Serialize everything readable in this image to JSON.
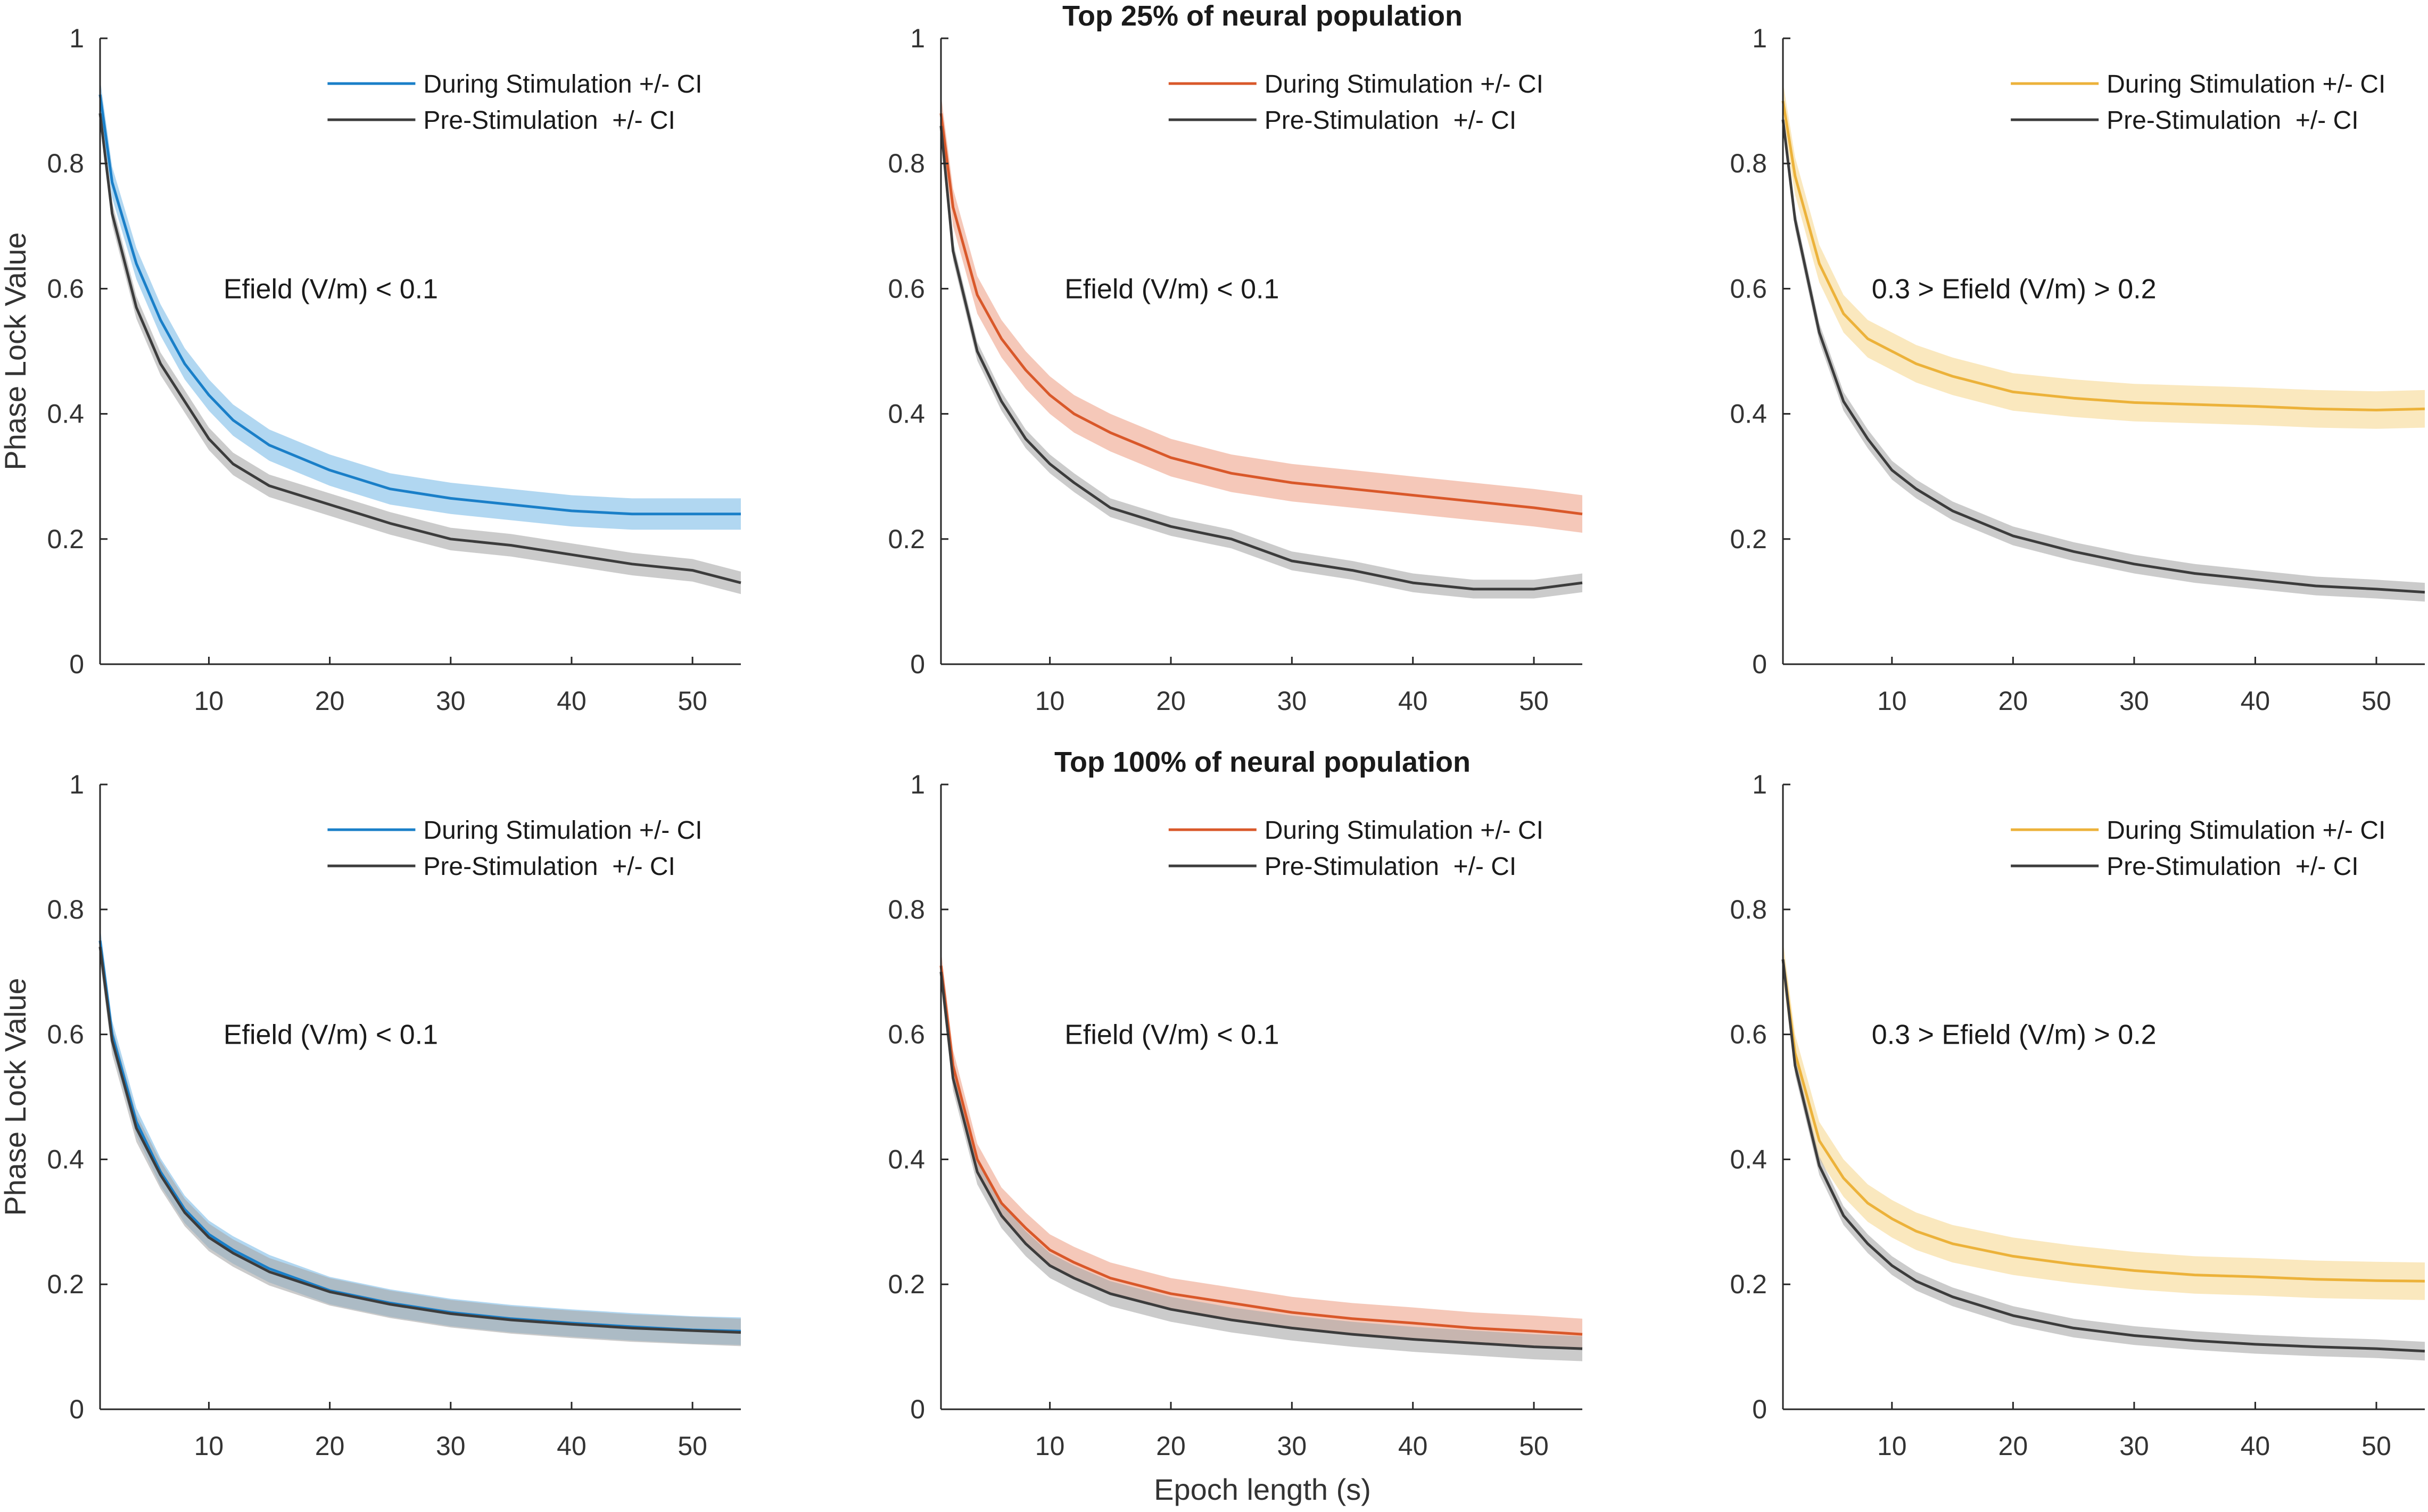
{
  "figure": {
    "title_top": "Top 25% of neural population",
    "title_bottom": "Top 100% of neural population",
    "xlabel": "Epoch length (s)",
    "ylabel": "Phase Lock Value"
  },
  "colors": {
    "blue": "#1a7fc8",
    "blue_band": "#7dbce8",
    "orange": "#d9582a",
    "orange_band": "#eea48a",
    "yellow": "#ecb23a",
    "yellow_band": "#f6d893",
    "gray": "#3c3c3c",
    "gray_band": "#a8a8a8",
    "axis": "#262626"
  },
  "chart_data": [
    {
      "type": "line",
      "panel": "top-left",
      "annotation": "Efield (V/m) < 0.1",
      "legend": [
        "During Stimulation +/- CI",
        "Pre-Stimulation  +/- CI"
      ],
      "legend_position": "top-right",
      "ylabel": "Phase Lock Value",
      "xlabel": "",
      "xlim": [
        1,
        54
      ],
      "ylim": [
        0,
        1
      ],
      "xticks": [
        10,
        20,
        30,
        40,
        50
      ],
      "yticks": [
        0,
        0.2,
        0.4,
        0.6,
        0.8,
        1
      ],
      "ytick_labels": [
        "0",
        "0.2",
        "0.4",
        "0.6",
        "0.8",
        "1"
      ],
      "x": [
        1,
        2,
        4,
        6,
        8,
        10,
        12,
        15,
        20,
        25,
        30,
        35,
        40,
        45,
        50,
        54
      ],
      "series": [
        {
          "name": "During Stimulation +/- CI",
          "color": "blue",
          "values": [
            0.91,
            0.77,
            0.64,
            0.55,
            0.48,
            0.43,
            0.39,
            0.35,
            0.31,
            0.28,
            0.265,
            0.255,
            0.245,
            0.24,
            0.24,
            0.24
          ],
          "ci": 0.025
        },
        {
          "name": "Pre-Stimulation  +/- CI",
          "color": "gray",
          "values": [
            0.88,
            0.72,
            0.57,
            0.48,
            0.42,
            0.36,
            0.32,
            0.285,
            0.255,
            0.225,
            0.2,
            0.19,
            0.175,
            0.16,
            0.15,
            0.13
          ],
          "ci": 0.018
        }
      ]
    },
    {
      "type": "line",
      "panel": "top-middle",
      "annotation": "Efield (V/m) < 0.1",
      "legend": [
        "During Stimulation +/- CI",
        "Pre-Stimulation  +/- CI"
      ],
      "legend_position": "top-right",
      "ylabel": "",
      "xlabel": "",
      "xlim": [
        1,
        54
      ],
      "ylim": [
        0,
        1
      ],
      "xticks": [
        10,
        20,
        30,
        40,
        50
      ],
      "yticks": [
        0,
        0.2,
        0.4,
        0.6,
        0.8,
        1
      ],
      "ytick_labels": [
        "0",
        "0.2",
        "0.4",
        "0.6",
        "0.8",
        "1"
      ],
      "x": [
        1,
        2,
        4,
        6,
        8,
        10,
        12,
        15,
        20,
        25,
        30,
        35,
        40,
        45,
        50,
        54
      ],
      "series": [
        {
          "name": "During Stimulation +/- CI",
          "color": "orange",
          "values": [
            0.88,
            0.73,
            0.59,
            0.52,
            0.47,
            0.43,
            0.4,
            0.37,
            0.33,
            0.305,
            0.29,
            0.28,
            0.27,
            0.26,
            0.25,
            0.24
          ],
          "ci": 0.03
        },
        {
          "name": "Pre-Stimulation  +/- CI",
          "color": "gray",
          "values": [
            0.86,
            0.66,
            0.5,
            0.42,
            0.36,
            0.32,
            0.29,
            0.25,
            0.22,
            0.2,
            0.165,
            0.15,
            0.13,
            0.12,
            0.12,
            0.13
          ],
          "ci": 0.015
        }
      ]
    },
    {
      "type": "line",
      "panel": "top-right",
      "annotation": "0.3 > Efield (V/m) > 0.2",
      "legend": [
        "During Stimulation +/- CI",
        "Pre-Stimulation  +/- CI"
      ],
      "legend_position": "top-right",
      "ylabel": "",
      "xlabel": "",
      "xlim": [
        1,
        54
      ],
      "ylim": [
        0,
        1
      ],
      "xticks": [
        10,
        20,
        30,
        40,
        50
      ],
      "yticks": [
        0,
        0.2,
        0.4,
        0.6,
        0.8,
        1
      ],
      "ytick_labels": [
        "0",
        "0.2",
        "0.4",
        "0.6",
        "0.8",
        "1"
      ],
      "x": [
        1,
        2,
        4,
        6,
        8,
        10,
        12,
        15,
        20,
        25,
        30,
        35,
        40,
        45,
        50,
        54
      ],
      "series": [
        {
          "name": "During Stimulation +/- CI",
          "color": "yellow",
          "values": [
            0.9,
            0.78,
            0.64,
            0.56,
            0.52,
            0.5,
            0.48,
            0.46,
            0.435,
            0.425,
            0.418,
            0.415,
            0.412,
            0.408,
            0.406,
            0.408
          ],
          "ci": 0.03
        },
        {
          "name": "Pre-Stimulation  +/- CI",
          "color": "gray",
          "values": [
            0.87,
            0.71,
            0.53,
            0.42,
            0.36,
            0.31,
            0.28,
            0.245,
            0.205,
            0.18,
            0.16,
            0.145,
            0.135,
            0.125,
            0.12,
            0.115
          ],
          "ci": 0.015
        }
      ]
    },
    {
      "type": "line",
      "panel": "bottom-left",
      "annotation": "Efield (V/m) < 0.1",
      "legend": [
        "During Stimulation +/- CI",
        "Pre-Stimulation  +/- CI"
      ],
      "legend_position": "top-right",
      "ylabel": "Phase Lock Value",
      "xlabel": "",
      "xlim": [
        1,
        54
      ],
      "ylim": [
        0,
        1
      ],
      "xticks": [
        10,
        20,
        30,
        40,
        50
      ],
      "yticks": [
        0,
        0.2,
        0.4,
        0.6,
        0.8,
        1
      ],
      "ytick_labels": [
        "0",
        "0.2",
        "0.4",
        "0.6",
        "0.8",
        "1"
      ],
      "x": [
        1,
        2,
        4,
        6,
        8,
        10,
        12,
        15,
        20,
        25,
        30,
        35,
        40,
        45,
        50,
        54
      ],
      "series": [
        {
          "name": "During Stimulation +/- CI",
          "color": "blue",
          "values": [
            0.75,
            0.6,
            0.46,
            0.38,
            0.32,
            0.28,
            0.255,
            0.225,
            0.19,
            0.17,
            0.155,
            0.145,
            0.138,
            0.132,
            0.127,
            0.125
          ],
          "ci": 0.022
        },
        {
          "name": "Pre-Stimulation  +/- CI",
          "color": "gray",
          "values": [
            0.74,
            0.59,
            0.45,
            0.375,
            0.315,
            0.275,
            0.25,
            0.22,
            0.188,
            0.168,
            0.153,
            0.143,
            0.136,
            0.13,
            0.126,
            0.123
          ],
          "ci": 0.022
        }
      ]
    },
    {
      "type": "line",
      "panel": "bottom-middle",
      "annotation": "Efield (V/m) < 0.1",
      "legend": [
        "During Stimulation +/- CI",
        "Pre-Stimulation  +/- CI"
      ],
      "legend_position": "top-right",
      "ylabel": "",
      "xlabel": "Epoch length (s)",
      "xlim": [
        1,
        54
      ],
      "ylim": [
        0,
        1
      ],
      "xticks": [
        10,
        20,
        30,
        40,
        50
      ],
      "yticks": [
        0,
        0.2,
        0.4,
        0.6,
        0.8,
        1
      ],
      "ytick_labels": [
        "0",
        "0.2",
        "0.4",
        "0.6",
        "0.8",
        "1"
      ],
      "x": [
        1,
        2,
        4,
        6,
        8,
        10,
        12,
        15,
        20,
        25,
        30,
        35,
        40,
        45,
        50,
        54
      ],
      "series": [
        {
          "name": "During Stimulation +/- CI",
          "color": "orange",
          "values": [
            0.71,
            0.55,
            0.4,
            0.33,
            0.29,
            0.255,
            0.235,
            0.21,
            0.185,
            0.17,
            0.155,
            0.145,
            0.138,
            0.13,
            0.125,
            0.12
          ],
          "ci": 0.025
        },
        {
          "name": "Pre-Stimulation  +/- CI",
          "color": "gray",
          "values": [
            0.7,
            0.53,
            0.38,
            0.31,
            0.265,
            0.23,
            0.21,
            0.185,
            0.16,
            0.143,
            0.13,
            0.12,
            0.112,
            0.106,
            0.1,
            0.097
          ],
          "ci": 0.02
        }
      ]
    },
    {
      "type": "line",
      "panel": "bottom-right",
      "annotation": "0.3 > Efield (V/m) > 0.2",
      "legend": [
        "During Stimulation +/- CI",
        "Pre-Stimulation  +/- CI"
      ],
      "legend_position": "top-right",
      "ylabel": "",
      "xlabel": "",
      "xlim": [
        1,
        54
      ],
      "ylim": [
        0,
        1
      ],
      "xticks": [
        10,
        20,
        30,
        40,
        50
      ],
      "yticks": [
        0,
        0.2,
        0.4,
        0.6,
        0.8,
        1
      ],
      "ytick_labels": [
        "0",
        "0.2",
        "0.4",
        "0.6",
        "0.8",
        "1"
      ],
      "x": [
        1,
        2,
        4,
        6,
        8,
        10,
        12,
        15,
        20,
        25,
        30,
        35,
        40,
        45,
        50,
        54
      ],
      "series": [
        {
          "name": "During Stimulation +/- CI",
          "color": "yellow",
          "values": [
            0.72,
            0.57,
            0.43,
            0.37,
            0.33,
            0.305,
            0.285,
            0.265,
            0.245,
            0.232,
            0.222,
            0.215,
            0.212,
            0.208,
            0.206,
            0.205
          ],
          "ci": 0.03
        },
        {
          "name": "Pre-Stimulation  +/- CI",
          "color": "gray",
          "values": [
            0.72,
            0.55,
            0.39,
            0.31,
            0.265,
            0.23,
            0.205,
            0.18,
            0.15,
            0.13,
            0.118,
            0.11,
            0.104,
            0.1,
            0.097,
            0.093
          ],
          "ci": 0.015
        }
      ]
    }
  ]
}
